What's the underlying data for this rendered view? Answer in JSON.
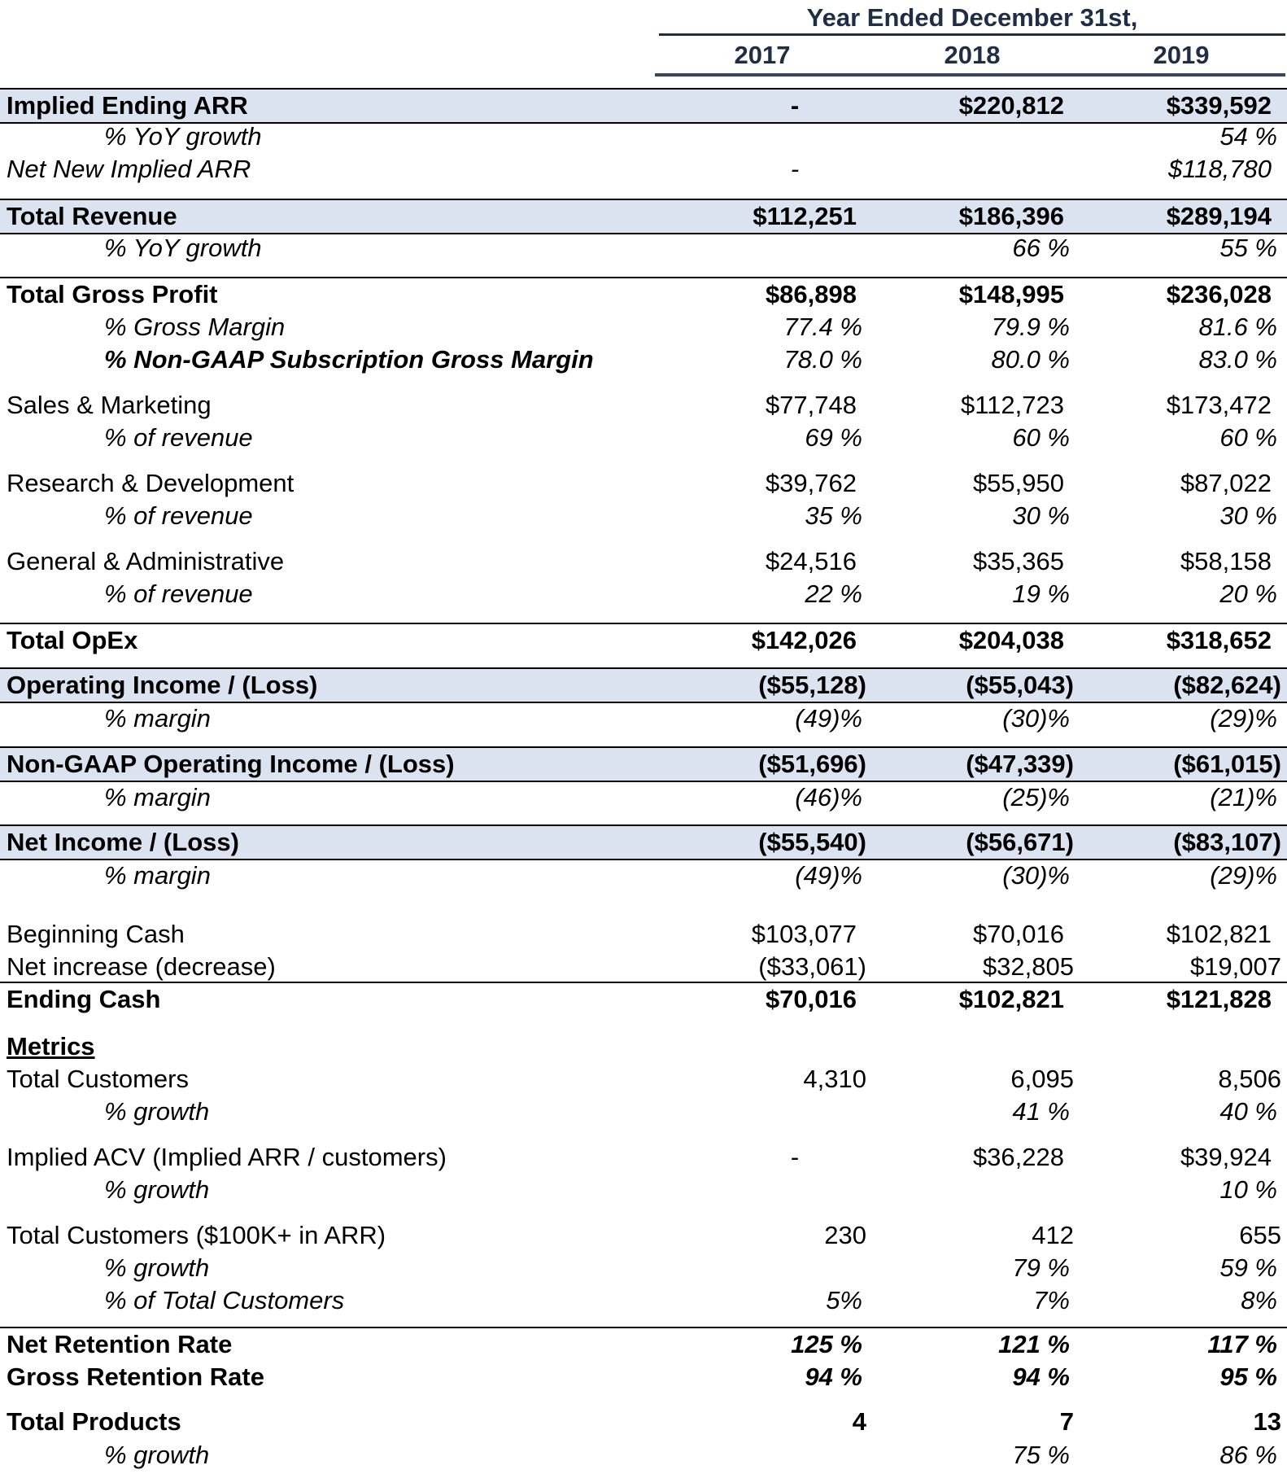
{
  "header": {
    "title": "Year Ended December 31st,",
    "years": [
      "2017",
      "2018",
      "2019"
    ]
  },
  "rows": [
    {
      "label": "Implied Ending ARR",
      "v": [
        "-",
        "$220,812",
        "$339,592"
      ]
    },
    {
      "label": "% YoY growth",
      "v": [
        "",
        "",
        "54 %"
      ]
    },
    {
      "label": "Net New Implied ARR",
      "v": [
        "-",
        "",
        "$118,780"
      ]
    },
    {
      "label": "Total Revenue",
      "v": [
        "$112,251",
        "$186,396",
        "$289,194"
      ]
    },
    {
      "label": "% YoY growth",
      "v": [
        "",
        "66 %",
        "55 %"
      ]
    },
    {
      "label": "Total Gross Profit",
      "v": [
        "$86,898",
        "$148,995",
        "$236,028"
      ]
    },
    {
      "label": "% Gross Margin",
      "v": [
        "77.4 %",
        "79.9 %",
        "81.6 %"
      ]
    },
    {
      "label": "% Non-GAAP Subscription Gross Margin",
      "v": [
        "78.0 %",
        "80.0 %",
        "83.0 %"
      ]
    },
    {
      "label": "Sales & Marketing",
      "v": [
        "$77,748",
        "$112,723",
        "$173,472"
      ]
    },
    {
      "label": "% of revenue",
      "v": [
        "69 %",
        "60 %",
        "60 %"
      ]
    },
    {
      "label": "Research & Development",
      "v": [
        "$39,762",
        "$55,950",
        "$87,022"
      ]
    },
    {
      "label": "% of revenue",
      "v": [
        "35 %",
        "30 %",
        "30 %"
      ]
    },
    {
      "label": "General & Administrative",
      "v": [
        "$24,516",
        "$35,365",
        "$58,158"
      ]
    },
    {
      "label": "% of revenue",
      "v": [
        "22 %",
        "19 %",
        "20 %"
      ]
    },
    {
      "label": "Total OpEx",
      "v": [
        "$142,026",
        "$204,038",
        "$318,652"
      ]
    },
    {
      "label": "Operating Income / (Loss)",
      "v": [
        "($55,128)",
        "($55,043)",
        "($82,624)"
      ]
    },
    {
      "label": "% margin",
      "v": [
        "(49)%",
        "(30)%",
        "(29)%"
      ]
    },
    {
      "label": "Non-GAAP Operating Income / (Loss)",
      "v": [
        "($51,696)",
        "($47,339)",
        "($61,015)"
      ]
    },
    {
      "label": "% margin",
      "v": [
        "(46)%",
        "(25)%",
        "(21)%"
      ]
    },
    {
      "label": "Net Income / (Loss)",
      "v": [
        "($55,540)",
        "($56,671)",
        "($83,107)"
      ]
    },
    {
      "label": "% margin",
      "v": [
        "(49)%",
        "(30)%",
        "(29)%"
      ]
    },
    {
      "label": "Beginning Cash",
      "v": [
        "$103,077",
        "$70,016",
        "$102,821"
      ]
    },
    {
      "label": "Net increase (decrease)",
      "v": [
        "($33,061)",
        "$32,805",
        "$19,007"
      ]
    },
    {
      "label": "Ending Cash",
      "v": [
        "$70,016",
        "$102,821",
        "$121,828"
      ]
    },
    {
      "label": "Metrics",
      "v": [
        "",
        "",
        ""
      ]
    },
    {
      "label": "Total Customers",
      "v": [
        "4,310",
        "6,095",
        "8,506"
      ]
    },
    {
      "label": "% growth",
      "v": [
        "",
        "41 %",
        "40 %"
      ]
    },
    {
      "label": "Implied ACV (Implied ARR / customers)",
      "v": [
        "-",
        "$36,228",
        "$39,924"
      ]
    },
    {
      "label": "% growth",
      "v": [
        "",
        "",
        "10 %"
      ]
    },
    {
      "label": "Total Customers ($100K+ in ARR)",
      "v": [
        "230",
        "412",
        "655"
      ]
    },
    {
      "label": "% growth",
      "v": [
        "",
        "79 %",
        "59 %"
      ]
    },
    {
      "label": "% of Total Customers",
      "v": [
        "5%",
        "7%",
        "8%"
      ]
    },
    {
      "label": "Net Retention Rate",
      "v": [
        "125 %",
        "121 %",
        "117 %"
      ]
    },
    {
      "label": "Gross Retention Rate",
      "v": [
        "94 %",
        "94 %",
        "95 %"
      ]
    },
    {
      "label": "Total Products",
      "v": [
        "4",
        "7",
        "13"
      ]
    },
    {
      "label": "% growth",
      "v": [
        "",
        "75 %",
        "86 %"
      ]
    }
  ]
}
